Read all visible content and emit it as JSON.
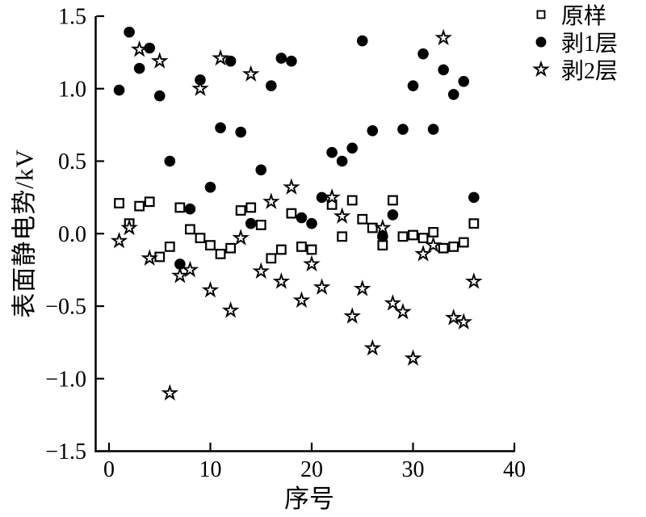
{
  "figure": {
    "background": "#ffffff",
    "axis_color": "#000000"
  },
  "chart_data": {
    "type": "scatter",
    "title": "",
    "xlabel": "序号",
    "ylabel": "表面静电势/kV",
    "xlim": [
      0,
      40
    ],
    "ylim": [
      -1.5,
      1.5
    ],
    "grid": false,
    "legend_position": "top-right-outside",
    "xticks": [
      {
        "label": "0",
        "value": 0
      },
      {
        "label": "10",
        "value": 10
      },
      {
        "label": "20",
        "value": 20
      },
      {
        "label": "30",
        "value": 30
      },
      {
        "label": "40",
        "value": 40
      }
    ],
    "yticks": [
      {
        "label": "1.5",
        "value": 1.5
      },
      {
        "label": "1.0",
        "value": 1.0
      },
      {
        "label": "0.5",
        "value": 0.5
      },
      {
        "label": "0.0",
        "value": 0.0
      },
      {
        "label": "−0.5",
        "value": -0.5
      },
      {
        "label": "−1.0",
        "value": -1.0
      },
      {
        "label": "−1.5",
        "value": -1.5
      }
    ],
    "series": [
      {
        "name": "原样",
        "marker": "open-square",
        "color": "#000000",
        "points": [
          [
            1,
            0.21
          ],
          [
            2,
            0.07
          ],
          [
            3,
            0.19
          ],
          [
            4,
            0.22
          ],
          [
            5,
            -0.16
          ],
          [
            6,
            -0.09
          ],
          [
            7,
            0.18
          ],
          [
            8,
            0.03
          ],
          [
            9,
            -0.03
          ],
          [
            10,
            -0.08
          ],
          [
            11,
            -0.14
          ],
          [
            12,
            -0.1
          ],
          [
            13,
            0.16
          ],
          [
            14,
            0.18
          ],
          [
            15,
            0.06
          ],
          [
            16,
            -0.17
          ],
          [
            17,
            -0.11
          ],
          [
            18,
            0.14
          ],
          [
            19,
            -0.09
          ],
          [
            20,
            -0.11
          ],
          [
            22,
            0.2
          ],
          [
            23,
            -0.02
          ],
          [
            24,
            0.23
          ],
          [
            25,
            0.1
          ],
          [
            26,
            0.04
          ],
          [
            27,
            -0.08
          ],
          [
            28,
            0.23
          ],
          [
            29,
            -0.02
          ],
          [
            30,
            -0.01
          ],
          [
            31,
            -0.03
          ],
          [
            32,
            0.01
          ],
          [
            33,
            -0.1
          ],
          [
            34,
            -0.09
          ],
          [
            35,
            -0.06
          ],
          [
            36,
            0.07
          ]
        ]
      },
      {
        "name": "剥1层",
        "marker": "filled-circle",
        "color": "#000000",
        "points": [
          [
            1,
            0.99
          ],
          [
            2,
            1.39
          ],
          [
            3,
            1.14
          ],
          [
            4,
            1.28
          ],
          [
            5,
            0.95
          ],
          [
            6,
            0.5
          ],
          [
            7,
            -0.21
          ],
          [
            8,
            0.17
          ],
          [
            9,
            1.06
          ],
          [
            10,
            0.32
          ],
          [
            11,
            0.73
          ],
          [
            12,
            1.19
          ],
          [
            13,
            0.7
          ],
          [
            14,
            0.07
          ],
          [
            15,
            0.44
          ],
          [
            16,
            1.02
          ],
          [
            17,
            1.21
          ],
          [
            18,
            1.19
          ],
          [
            19,
            0.11
          ],
          [
            20,
            0.07
          ],
          [
            21,
            0.25
          ],
          [
            22,
            0.56
          ],
          [
            23,
            0.5
          ],
          [
            24,
            0.59
          ],
          [
            25,
            1.33
          ],
          [
            26,
            0.71
          ],
          [
            27,
            -0.02
          ],
          [
            28,
            0.13
          ],
          [
            29,
            0.72
          ],
          [
            30,
            1.02
          ],
          [
            31,
            1.24
          ],
          [
            32,
            0.72
          ],
          [
            33,
            1.13
          ],
          [
            34,
            0.96
          ],
          [
            35,
            1.05
          ],
          [
            36,
            0.25
          ]
        ]
      },
      {
        "name": "剥2层",
        "marker": "open-star",
        "color": "#000000",
        "points": [
          [
            1,
            -0.05
          ],
          [
            2,
            0.04
          ],
          [
            3,
            1.27
          ],
          [
            4,
            -0.17
          ],
          [
            5,
            1.19
          ],
          [
            6,
            -1.1
          ],
          [
            7,
            -0.29
          ],
          [
            8,
            -0.25
          ],
          [
            9,
            1.0
          ],
          [
            10,
            -0.39
          ],
          [
            11,
            1.21
          ],
          [
            12,
            -0.53
          ],
          [
            13,
            -0.03
          ],
          [
            14,
            1.1
          ],
          [
            15,
            -0.26
          ],
          [
            16,
            0.22
          ],
          [
            17,
            -0.33
          ],
          [
            18,
            0.32
          ],
          [
            19,
            -0.46
          ],
          [
            20,
            -0.21
          ],
          [
            21,
            -0.37
          ],
          [
            22,
            0.25
          ],
          [
            23,
            0.12
          ],
          [
            24,
            -0.57
          ],
          [
            25,
            -0.38
          ],
          [
            26,
            -0.79
          ],
          [
            27,
            0.04
          ],
          [
            28,
            -0.48
          ],
          [
            29,
            -0.54
          ],
          [
            30,
            -0.86
          ],
          [
            31,
            -0.14
          ],
          [
            32,
            -0.08
          ],
          [
            33,
            1.35
          ],
          [
            34,
            -0.58
          ],
          [
            35,
            -0.61
          ],
          [
            36,
            -0.33
          ]
        ]
      }
    ]
  }
}
